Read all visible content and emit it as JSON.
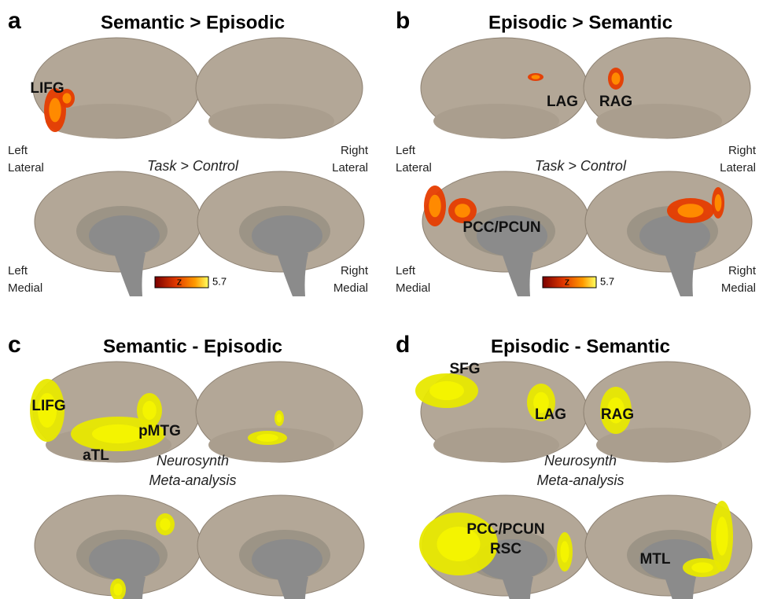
{
  "panels": [
    {
      "letter": "a",
      "title": "Semantic > Episodic",
      "subtitle": [
        "Task > Control"
      ],
      "views": [
        [
          "Left",
          "Lateral"
        ],
        [
          "Right",
          "Lateral"
        ],
        [
          "Left",
          "Medial"
        ],
        [
          "Right",
          "Medial"
        ]
      ],
      "regions": [
        "LIFG"
      ],
      "colorbar": {
        "label": "z",
        "max": 5.7
      }
    },
    {
      "letter": "b",
      "title": "Episodic > Semantic",
      "subtitle": [
        "Task > Control"
      ],
      "views": [
        [
          "Left",
          "Lateral"
        ],
        [
          "Right",
          "Lateral"
        ],
        [
          "Left",
          "Medial"
        ],
        [
          "Right",
          "Medial"
        ]
      ],
      "regions": [
        "LAG",
        "RAG",
        "PCC/PCUN"
      ],
      "colorbar": {
        "label": "z",
        "max": 5.7
      }
    },
    {
      "letter": "c",
      "title": "Semantic - Episodic",
      "subtitle": [
        "Neurosynth",
        "Meta-analysis"
      ],
      "regions": [
        "LIFG",
        "pMTG",
        "aTL"
      ]
    },
    {
      "letter": "d",
      "title": "Episodic - Semantic",
      "subtitle": [
        "Neurosynth",
        "Meta-analysis"
      ],
      "regions": [
        "SFG",
        "LAG",
        "RAG",
        "PCC/PCUN",
        "RSC",
        "MTL"
      ]
    }
  ]
}
